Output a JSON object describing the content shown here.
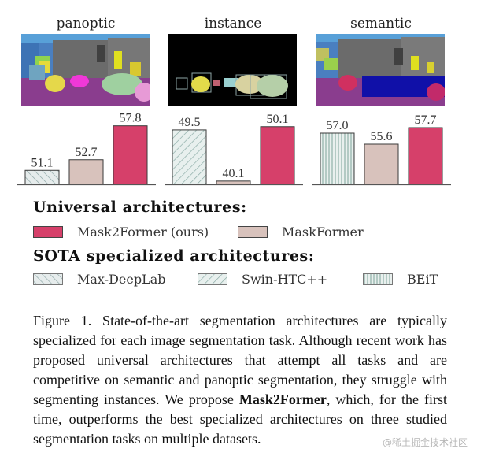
{
  "panels": [
    {
      "title": "panoptic"
    },
    {
      "title": "instance"
    },
    {
      "title": "semantic"
    }
  ],
  "colors": {
    "Mask2Former (ours)": "#d6406a",
    "MaskFormer": "#d8c2bc",
    "Max-DeepLab": "#cfd8d8",
    "Swin-HTC++": "#cfe0dc",
    "BEiT": "#d4e1de",
    "axis": "#555555"
  },
  "chart_data": [
    {
      "type": "bar",
      "panel": "panoptic",
      "categories": [
        "Max-DeepLab",
        "MaskFormer",
        "Mask2Former (ours)"
      ],
      "values": [
        51.1,
        52.7,
        57.8
      ],
      "labels": [
        "51.1",
        "52.7",
        "57.8"
      ],
      "ylim": [
        49,
        58
      ]
    },
    {
      "type": "bar",
      "panel": "instance",
      "categories": [
        "Swin-HTC++",
        "MaskFormer",
        "Mask2Former (ours)"
      ],
      "values": [
        49.5,
        40.1,
        50.1
      ],
      "labels": [
        "49.5",
        "40.1",
        "50.1"
      ],
      "ylim": [
        39.5,
        50.5
      ]
    },
    {
      "type": "bar",
      "panel": "semantic",
      "categories": [
        "BEiT",
        "MaskFormer",
        "Mask2Former (ours)"
      ],
      "values": [
        57.0,
        55.6,
        57.7
      ],
      "labels": [
        "57.0",
        "55.6",
        "57.7"
      ],
      "ylim": [
        50.5,
        58.1
      ]
    }
  ],
  "legend": {
    "universal_heading": "Universal architectures:",
    "specialized_heading": "SOTA specialized architectures:",
    "items": {
      "mask2former": "Mask2Former (ours)",
      "maskformer": "MaskFormer",
      "maxdeeplab": "Max-DeepLab",
      "swinhtc": "Swin-HTC++",
      "beit": "BEiT"
    }
  },
  "caption": {
    "part1": "Figure 1. State-of-the-art segmentation architectures are typically specialized for each image segmentation task.  Although recent work has proposed universal architectures that attempt all tasks and are competitive on semantic and panoptic segmentation, they struggle with segmenting instances. We propose ",
    "bold": "Mask2Former",
    "part2": ", which, for the first time, outperforms the best specialized architectures on three studied segmentation tasks on multiple datasets."
  },
  "watermark": "@稀土掘金技术社区"
}
